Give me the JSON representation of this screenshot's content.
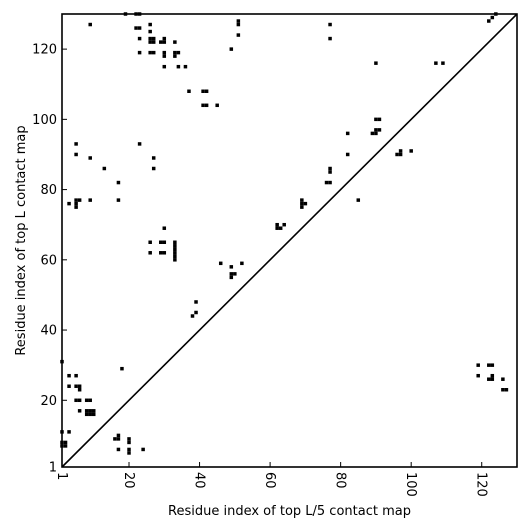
{
  "chart_data": {
    "type": "heatmap",
    "title": "",
    "xlabel": "Residue index of top L/5 contact map",
    "ylabel": "Residue index of top L contact map",
    "xlim": [
      1,
      130
    ],
    "ylim": [
      1,
      130
    ],
    "xticks": [
      1,
      20,
      40,
      60,
      80,
      100,
      120
    ],
    "yticks": [
      1,
      20,
      40,
      60,
      80,
      100,
      120
    ],
    "x_tick_rotation": "vertical",
    "grid": false,
    "diagonal_line": true,
    "point_color": "#000000",
    "upper_triangle_points": [
      [
        1,
        31
      ],
      [
        1,
        11
      ],
      [
        2,
        8
      ],
      [
        1,
        8
      ],
      [
        1,
        7
      ],
      [
        2,
        7
      ],
      [
        3,
        11
      ],
      [
        3,
        76
      ],
      [
        3,
        27
      ],
      [
        3,
        24
      ],
      [
        5,
        93
      ],
      [
        5,
        90
      ],
      [
        5,
        77
      ],
      [
        6,
        77
      ],
      [
        5,
        76
      ],
      [
        5,
        75
      ],
      [
        5,
        27
      ],
      [
        5,
        24
      ],
      [
        6,
        24
      ],
      [
        6,
        23
      ],
      [
        5,
        20
      ],
      [
        6,
        20
      ],
      [
        6,
        17
      ],
      [
        8,
        20
      ],
      [
        9,
        20
      ],
      [
        8,
        17
      ],
      [
        9,
        17
      ],
      [
        10,
        17
      ],
      [
        8,
        16
      ],
      [
        9,
        16
      ],
      [
        10,
        16
      ],
      [
        9,
        127
      ],
      [
        9,
        89
      ],
      [
        9,
        77
      ],
      [
        13,
        86
      ],
      [
        17,
        82
      ],
      [
        17,
        77
      ],
      [
        16,
        9
      ],
      [
        17,
        9
      ],
      [
        17,
        10
      ],
      [
        17,
        6
      ],
      [
        18,
        29
      ],
      [
        19,
        130
      ],
      [
        20,
        8
      ],
      [
        20,
        9
      ],
      [
        20,
        5
      ],
      [
        20,
        6
      ],
      [
        22,
        130
      ],
      [
        23,
        130
      ],
      [
        22,
        126
      ],
      [
        23,
        126
      ],
      [
        23,
        123
      ],
      [
        23,
        119
      ],
      [
        23,
        93
      ],
      [
        24,
        6
      ],
      [
        26,
        127
      ],
      [
        26,
        125
      ],
      [
        26,
        123
      ],
      [
        27,
        123
      ],
      [
        26,
        122
      ],
      [
        27,
        122
      ],
      [
        26,
        119
      ],
      [
        27,
        119
      ],
      [
        26,
        65
      ],
      [
        26,
        62
      ],
      [
        27,
        89
      ],
      [
        27,
        86
      ],
      [
        29,
        122
      ],
      [
        30,
        122
      ],
      [
        30,
        123
      ],
      [
        30,
        119
      ],
      [
        30,
        118
      ],
      [
        30,
        115
      ],
      [
        30,
        69
      ],
      [
        29,
        65
      ],
      [
        30,
        65
      ],
      [
        29,
        62
      ],
      [
        30,
        62
      ],
      [
        33,
        122
      ],
      [
        33,
        119
      ],
      [
        34,
        119
      ],
      [
        33,
        118
      ],
      [
        34,
        115
      ],
      [
        33,
        65
      ],
      [
        33,
        64
      ],
      [
        33,
        63
      ],
      [
        33,
        62
      ],
      [
        33,
        61
      ],
      [
        33,
        60
      ],
      [
        36,
        115
      ],
      [
        37,
        108
      ],
      [
        39,
        48
      ],
      [
        38,
        44
      ],
      [
        39,
        45
      ],
      [
        41,
        108
      ],
      [
        42,
        108
      ],
      [
        41,
        104
      ],
      [
        42,
        104
      ],
      [
        45,
        104
      ],
      [
        46,
        59
      ],
      [
        49,
        120
      ],
      [
        49,
        58
      ],
      [
        49,
        56
      ],
      [
        50,
        56
      ],
      [
        49,
        55
      ],
      [
        52,
        59
      ],
      [
        51,
        128
      ],
      [
        51,
        127
      ],
      [
        51,
        124
      ],
      [
        62,
        70
      ],
      [
        62,
        69
      ],
      [
        63,
        69
      ],
      [
        64,
        70
      ],
      [
        69,
        77
      ],
      [
        69,
        76
      ],
      [
        70,
        76
      ],
      [
        69,
        75
      ],
      [
        76,
        82
      ],
      [
        77,
        82
      ],
      [
        77,
        127
      ],
      [
        77,
        123
      ],
      [
        77,
        86
      ],
      [
        77,
        85
      ],
      [
        82,
        96
      ],
      [
        82,
        90
      ],
      [
        85,
        77
      ],
      [
        89,
        96
      ],
      [
        90,
        96
      ],
      [
        90,
        97
      ],
      [
        91,
        97
      ],
      [
        90,
        100
      ],
      [
        91,
        100
      ],
      [
        90,
        116
      ],
      [
        96,
        90
      ],
      [
        97,
        90
      ],
      [
        97,
        91
      ],
      [
        100,
        91
      ],
      [
        107,
        116
      ],
      [
        109,
        116
      ],
      [
        122,
        128
      ],
      [
        123,
        129
      ],
      [
        124,
        130
      ]
    ],
    "lower_triangle_points": [
      [
        119,
        30
      ],
      [
        122,
        30
      ],
      [
        123,
        30
      ],
      [
        119,
        27
      ],
      [
        122,
        26
      ],
      [
        123,
        26
      ],
      [
        123,
        27
      ],
      [
        126,
        26
      ],
      [
        126,
        23
      ],
      [
        127,
        23
      ]
    ]
  }
}
